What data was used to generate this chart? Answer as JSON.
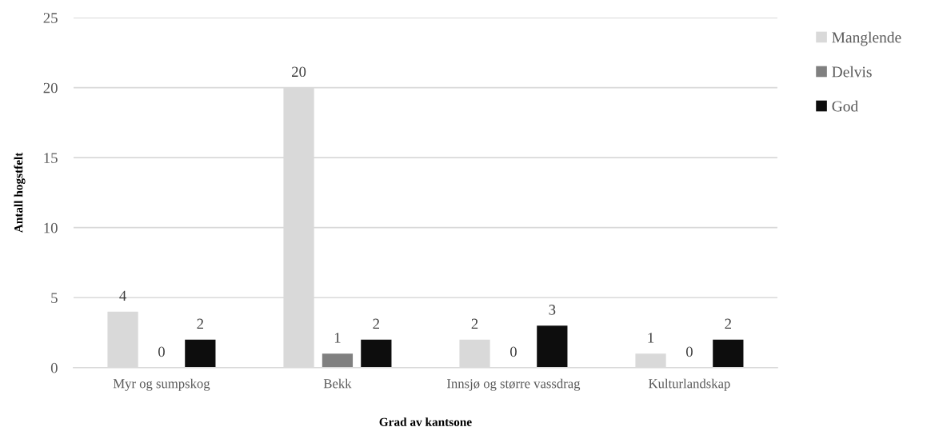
{
  "chart_data": {
    "type": "bar",
    "categories": [
      "Myr og sumpskog",
      "Bekk",
      "Innsjø og større vassdrag",
      "Kulturlandskap"
    ],
    "series": [
      {
        "name": "Manglende",
        "color": "#d9d9d9",
        "values": [
          4,
          20,
          2,
          1
        ]
      },
      {
        "name": "Delvis",
        "color": "#808080",
        "values": [
          0,
          1,
          0,
          0
        ]
      },
      {
        "name": "God",
        "color": "#0d0d0d",
        "values": [
          2,
          2,
          3,
          2
        ]
      }
    ],
    "xlabel": "Grad av kantsone",
    "ylabel": "Antall hogstfelt",
    "ylim": [
      0,
      25
    ],
    "yticks": [
      0,
      5,
      10,
      15,
      20,
      25
    ],
    "grid": "y",
    "legend": "top right",
    "data_labels": true
  }
}
